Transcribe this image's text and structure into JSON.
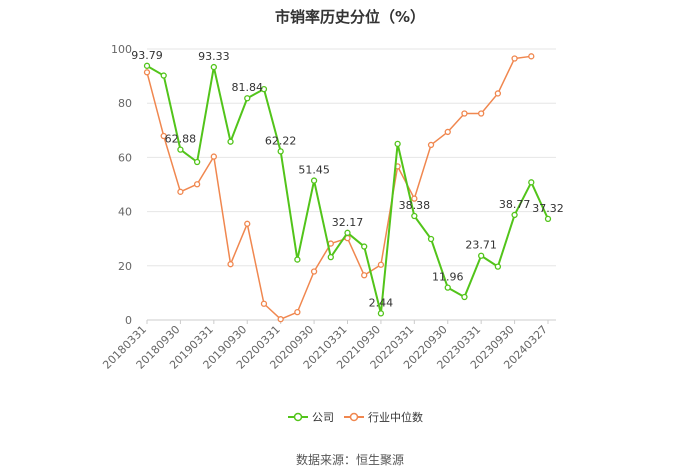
{
  "chart_data": {
    "type": "line",
    "title": "市销率历史分位（%）",
    "ylim": [
      0,
      100
    ],
    "y_ticks": [
      0,
      20,
      40,
      60,
      80,
      100
    ],
    "x": [
      "20180331",
      "20180630",
      "20180930",
      "20181231",
      "20190331",
      "20190630",
      "20190930",
      "20191231",
      "20200331",
      "20200630",
      "20200930",
      "20201231",
      "20210331",
      "20210630",
      "20210930",
      "20211231",
      "20220331",
      "20220630",
      "20220930",
      "20221231",
      "20230331",
      "20230630",
      "20230930",
      "20231231",
      "20240327"
    ],
    "x_tick_labels": [
      "20180331",
      "20180930",
      "20190331",
      "20190930",
      "20200331",
      "20200930",
      "20210331",
      "20210930",
      "20220331",
      "20220930",
      "20230331",
      "20230930",
      "20240327"
    ],
    "grid": "horizontal",
    "legend_position": "bottom",
    "series": [
      {
        "name": "公司",
        "color": "#52c41a",
        "values": [
          93.79,
          90.2,
          62.88,
          58.3,
          93.33,
          65.8,
          81.84,
          85.2,
          62.22,
          22.3,
          51.45,
          23.2,
          32.17,
          27.1,
          2.44,
          65.0,
          38.38,
          29.9,
          11.96,
          8.5,
          23.71,
          19.7,
          38.77,
          50.8,
          37.32
        ],
        "labels": {
          "0": "93.79",
          "2": "62.88",
          "4": "93.33",
          "6": "81.84",
          "8": "62.22",
          "10": "51.45",
          "12": "32.17",
          "14": "2.44",
          "16": "38.38",
          "18": "11.96",
          "20": "23.71",
          "22": "38.77",
          "24": "37.32"
        }
      },
      {
        "name": "行业中位数",
        "color": "#f0874f",
        "values": [
          91.4,
          67.9,
          47.3,
          50.1,
          60.3,
          20.6,
          35.5,
          6.0,
          0.3,
          2.9,
          17.9,
          28.2,
          30.2,
          16.5,
          20.4,
          56.7,
          44.8,
          64.6,
          69.4,
          76.2,
          76.2,
          83.6,
          96.5,
          97.3,
          null
        ]
      }
    ]
  },
  "source_text": "数据来源：恒生聚源"
}
